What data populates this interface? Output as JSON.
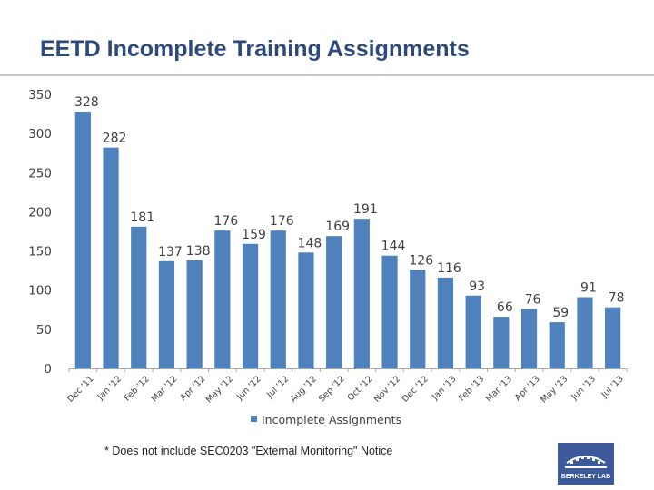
{
  "title": "EETD Incomplete Training Assignments",
  "footnote": "* Does not include SEC0203 \"External Monitoring\" Notice",
  "logo": {
    "text": "BERKELEY LAB",
    "icon": "berkeley-lab-logo-icon",
    "color": "#3c5a99"
  },
  "colors": {
    "bar": "#4f81bd",
    "title": "#2e4a7d"
  },
  "chart_data": {
    "type": "bar",
    "categories": [
      "Dec '11",
      "Jan '12",
      "Feb '12",
      "Mar '12",
      "Apr '12",
      "May '12",
      "Jun '12",
      "Jul '12",
      "Aug '12",
      "Sep '12",
      "Oct '12",
      "Nov '12",
      "Dec '12",
      "Jan '13",
      "Feb '13",
      "Mar '13",
      "Apr '13",
      "May '13",
      "Jun '13",
      "Jul '13"
    ],
    "series": [
      {
        "name": "Incomplete Assignments",
        "values": [
          328,
          282,
          181,
          137,
          138,
          176,
          159,
          176,
          148,
          169,
          191,
          144,
          126,
          116,
          93,
          66,
          76,
          59,
          91,
          78
        ]
      }
    ],
    "yticks": [
      "0",
      "50",
      "100",
      "150",
      "200",
      "250",
      "300",
      "350"
    ],
    "ylim": [
      0,
      350
    ],
    "grid": false,
    "legend": "bottom"
  }
}
